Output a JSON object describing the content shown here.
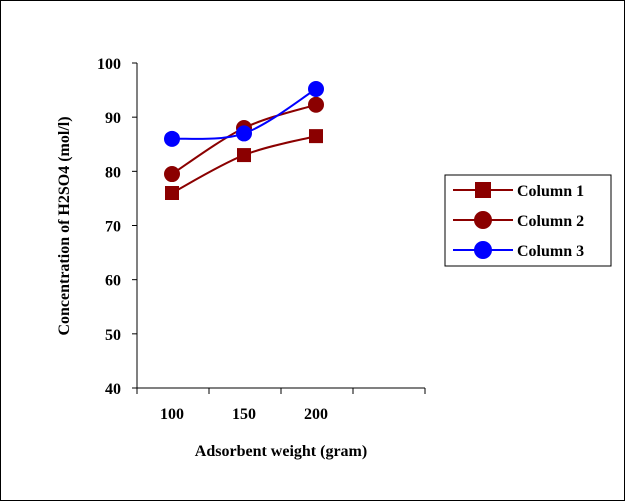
{
  "chart_data": {
    "type": "line",
    "xlabel": "Adsorbent weight (gram)",
    "ylabel": "Concentration of H2SO4 (mol/l)",
    "categories": [
      "100",
      "150",
      "200"
    ],
    "x": [
      100,
      150,
      200
    ],
    "ylim": [
      40,
      100
    ],
    "yticks": [
      "40",
      "50",
      "60",
      "70",
      "80",
      "90",
      "100"
    ],
    "grid": false,
    "legend_position": "right",
    "series": [
      {
        "name": "Column 1",
        "values": [
          76,
          83,
          86.5
        ],
        "color": "#8B0000",
        "marker": "square"
      },
      {
        "name": "Column 2",
        "values": [
          79.5,
          88,
          92.3
        ],
        "color": "#8B0000",
        "marker": "circle"
      },
      {
        "name": "Column 3",
        "values": [
          86,
          87,
          95.2
        ],
        "color": "#0000FF",
        "marker": "circle"
      }
    ]
  }
}
